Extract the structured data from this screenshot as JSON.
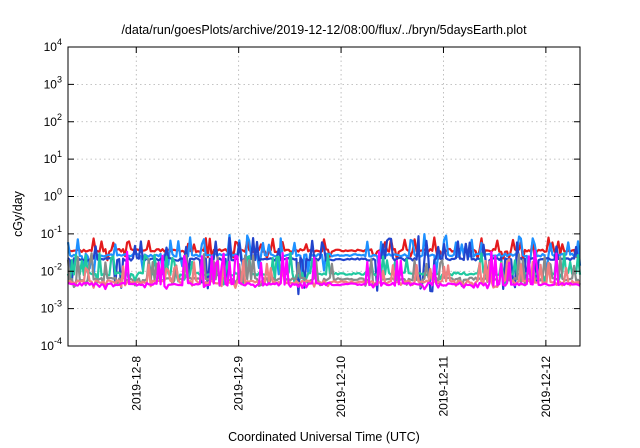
{
  "chart_data": {
    "type": "line",
    "title": "/data/run/goesPlots/archive/2019-12-12/08:00/flux/../bryn/5daysEarth.plot",
    "xlabel": "Coordinated Universal Time (UTC)",
    "ylabel": "cGy/day",
    "yscale": "log",
    "ylim": [
      0.0001,
      10000
    ],
    "y_ticks": [
      {
        "value": 0.0001,
        "base": "10",
        "exp": "-4"
      },
      {
        "value": 0.001,
        "base": "10",
        "exp": "-3"
      },
      {
        "value": 0.01,
        "base": "10",
        "exp": "-2"
      },
      {
        "value": 0.1,
        "base": "10",
        "exp": "-1"
      },
      {
        "value": 1,
        "base": "10",
        "exp": "0"
      },
      {
        "value": 10,
        "base": "10",
        "exp": "1"
      },
      {
        "value": 100,
        "base": "10",
        "exp": "2"
      },
      {
        "value": 1000,
        "base": "10",
        "exp": "3"
      },
      {
        "value": 10000,
        "base": "10",
        "exp": "4"
      }
    ],
    "x_tick_labels": [
      "2019-12-8",
      "2019-12-9",
      "2019-12-10",
      "2019-12-11",
      "2019-12-12"
    ],
    "xlim": [
      "2019-12-07 08:00",
      "2019-12-12 08:00"
    ],
    "grid": true,
    "legend": "none",
    "series": [
      {
        "color": "#e41a1c",
        "base": 0.036,
        "spike_amp": 0.35,
        "dip_amp": 0.25,
        "seed": 3
      },
      {
        "color": "#1e90ff",
        "base": 0.027,
        "spike_amp": 0.55,
        "dip_amp": 0.55,
        "seed": 7
      },
      {
        "color": "#2244cc",
        "base": 0.021,
        "spike_amp": 0.6,
        "dip_amp": 0.9,
        "seed": 11
      },
      {
        "color": "#20c9a0",
        "base": 0.0085,
        "spike_amp": 0.55,
        "dip_amp": 0.25,
        "seed": 13
      },
      {
        "color": "#8a8a8a",
        "base": 0.0062,
        "spike_amp": 0.7,
        "dip_amp": 0.2,
        "seed": 17
      },
      {
        "color": "#f08080",
        "base": 0.0052,
        "spike_amp": 0.6,
        "dip_amp": 0.15,
        "seed": 19
      },
      {
        "color": "#ff00ff",
        "base": 0.0045,
        "spike_amp": 0.9,
        "dip_amp": 0.1,
        "seed": 23
      }
    ]
  }
}
